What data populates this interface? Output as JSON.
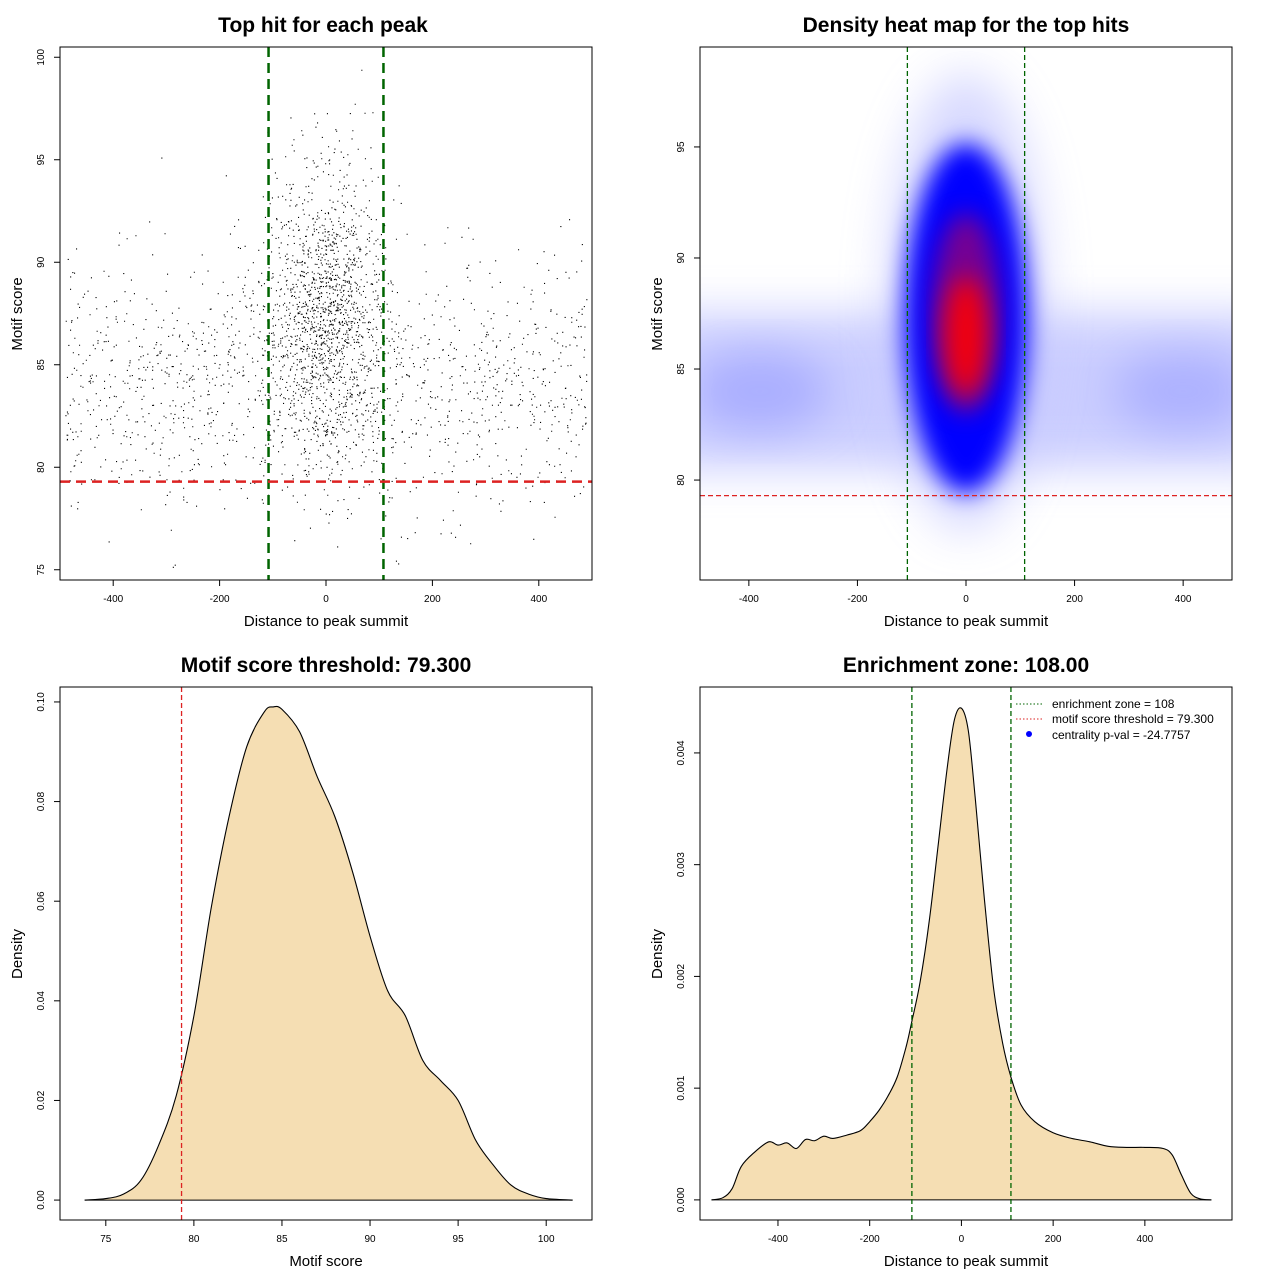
{
  "colors": {
    "threshold_line": "#dd2222",
    "zone_line": "#006400",
    "density_fill": "#f5deb3",
    "scatter_point": "#000000",
    "heat_low": "#ffffff",
    "heat_mid": "#0000ff",
    "heat_high": "#ff0000",
    "legend_dot": "#0000ff"
  },
  "chart_data": [
    {
      "type": "scatter",
      "title": "Top hit for each peak",
      "xlabel": "Distance to peak summit",
      "ylabel": "Motif score",
      "xlim": [
        -500,
        500
      ],
      "ylim": [
        74.5,
        100.5
      ],
      "xticks": [
        -400,
        -200,
        0,
        200,
        400
      ],
      "xtick_labels": [
        "-400",
        "-200",
        "0",
        "200",
        "400"
      ],
      "yticks": [
        75,
        80,
        85,
        90,
        95,
        100
      ],
      "ytick_labels": [
        "75",
        "80",
        "85",
        "90",
        "95",
        "100"
      ],
      "grid": false,
      "point_count": 6000,
      "distribution": {
        "central_fraction": 0.5,
        "central_x_sd": 55,
        "central_y_mean": 87.5,
        "central_y_sd": 3.6,
        "background_x_range": [
          -490,
          490
        ],
        "background_y_mean": 84,
        "background_y_sd": 3.1
      },
      "hlines": [
        {
          "y": 79.3,
          "label": "motif score threshold"
        }
      ],
      "vlines": [
        {
          "x": -108,
          "label": "enrichment zone"
        },
        {
          "x": 108,
          "label": "enrichment zone"
        }
      ]
    },
    {
      "type": "heatmap",
      "title": "Density heat map for the top hits",
      "xlabel": "Distance to peak summit",
      "ylabel": "Motif score",
      "xlim": [
        -490,
        490
      ],
      "ylim": [
        75.5,
        99.5
      ],
      "xticks": [
        -400,
        -200,
        0,
        200,
        400
      ],
      "xtick_labels": [
        "-400",
        "-200",
        "0",
        "200",
        "400"
      ],
      "yticks": [
        80,
        85,
        90,
        95
      ],
      "ytick_labels": [
        "80",
        "85",
        "90",
        "95"
      ],
      "grid": false,
      "peak": {
        "x": 0,
        "y": 87
      },
      "hlines": [
        {
          "y": 79.3
        }
      ],
      "vlines": [
        {
          "x": -108
        },
        {
          "x": 108
        }
      ]
    },
    {
      "type": "area",
      "title": "Motif score threshold: 79.300",
      "xlabel": "Motif score",
      "ylabel": "Density",
      "xlim": [
        72.4,
        102.6
      ],
      "ylim": [
        -0.004,
        0.103
      ],
      "xticks": [
        75,
        80,
        85,
        90,
        95,
        100
      ],
      "xtick_labels": [
        "75",
        "80",
        "85",
        "90",
        "95",
        "100"
      ],
      "yticks": [
        0,
        0.02,
        0.04,
        0.06,
        0.08,
        0.1
      ],
      "ytick_labels": [
        "0.00",
        "0.02",
        "0.04",
        "0.06",
        "0.08",
        "0.10"
      ],
      "grid": false,
      "x": [
        73.8,
        75,
        76,
        77,
        78,
        79,
        80,
        81,
        82,
        83,
        84,
        84.5,
        85,
        86,
        87,
        88,
        89,
        90,
        91,
        92,
        93,
        94,
        95,
        96,
        97,
        98,
        99,
        100,
        101.5
      ],
      "y": [
        0.0,
        0.0003,
        0.0012,
        0.004,
        0.011,
        0.021,
        0.037,
        0.059,
        0.077,
        0.091,
        0.098,
        0.099,
        0.0985,
        0.094,
        0.085,
        0.077,
        0.066,
        0.053,
        0.042,
        0.037,
        0.028,
        0.024,
        0.02,
        0.012,
        0.007,
        0.003,
        0.0012,
        0.0003,
        0.0
      ],
      "vlines": [
        {
          "x": 79.3
        }
      ]
    },
    {
      "type": "area",
      "title": "Enrichment zone: 108.00",
      "xlabel": "Distance to peak summit",
      "ylabel": "Density",
      "xlim": [
        -570,
        590
      ],
      "ylim": [
        -0.00018,
        0.00459
      ],
      "xticks": [
        -400,
        -200,
        0,
        200,
        400
      ],
      "xtick_labels": [
        "-400",
        "-200",
        "0",
        "200",
        "400"
      ],
      "yticks": [
        0,
        0.001,
        0.002,
        0.003,
        0.004
      ],
      "ytick_labels": [
        "0.000",
        "0.001",
        "0.002",
        "0.003",
        "0.004"
      ],
      "grid": false,
      "x": [
        -545,
        -520,
        -500,
        -480,
        -450,
        -420,
        -400,
        -380,
        -360,
        -340,
        -320,
        -300,
        -280,
        -250,
        -220,
        -200,
        -180,
        -160,
        -140,
        -120,
        -108,
        -90,
        -70,
        -50,
        -30,
        -15,
        0,
        15,
        30,
        50,
        70,
        90,
        108,
        130,
        160,
        200,
        240,
        280,
        320,
        360,
        400,
        440,
        460,
        480,
        500,
        520,
        545
      ],
      "y": [
        0.0,
        2e-05,
        0.0001,
        0.0003,
        0.00043,
        0.00052,
        0.00049,
        0.00051,
        0.00046,
        0.00054,
        0.00053,
        0.00057,
        0.00055,
        0.00058,
        0.00062,
        0.0007,
        0.0008,
        0.00093,
        0.0011,
        0.00138,
        0.0016,
        0.00195,
        0.0025,
        0.0032,
        0.0039,
        0.0043,
        0.0044,
        0.0042,
        0.0036,
        0.0027,
        0.0019,
        0.0014,
        0.0011,
        0.00085,
        0.0007,
        0.0006,
        0.00055,
        0.00052,
        0.00048,
        0.00047,
        0.00047,
        0.00046,
        0.0004,
        0.00022,
        6e-05,
        1e-05,
        0.0
      ],
      "vlines": [
        {
          "x": -108
        },
        {
          "x": 108
        }
      ],
      "legend": {
        "placement": "top-right",
        "entries": [
          {
            "label": "enrichment zone = 108",
            "style": "dotted-line",
            "color": "#006400"
          },
          {
            "label": "motif score threshold = 79.300",
            "style": "dotted-line",
            "color": "#dd2222"
          },
          {
            "label": "centrality p-val = -24.7757",
            "style": "dot",
            "color": "#0000ff"
          }
        ]
      }
    }
  ]
}
